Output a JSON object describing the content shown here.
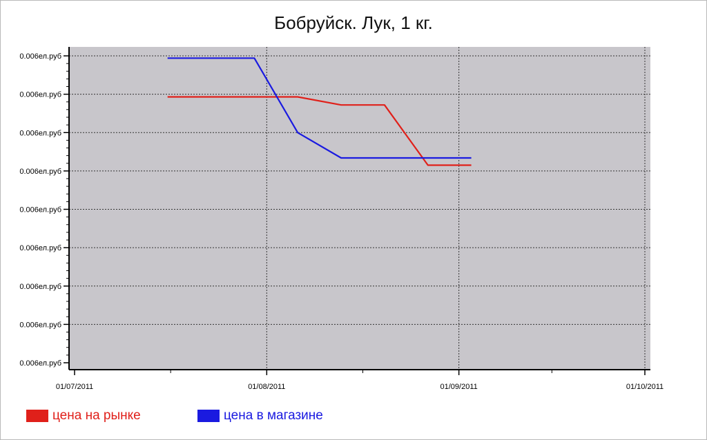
{
  "chart_data": {
    "type": "line",
    "title": "Бобруйск. Лук, 1 кг.",
    "xlabel": "",
    "ylabel": "",
    "x_ticks": [
      "01/07/2011",
      "01/08/2011",
      "01/09/2011",
      "01/10/2011"
    ],
    "x_range": [
      "2011-07-01",
      "2011-10-01"
    ],
    "y_tick_labels": [
      "0.006ел.руб",
      "0.006ел.руб",
      "0.006ел.руб",
      "0.006ел.руб",
      "0.006ел.руб",
      "0.006ел.руб",
      "0.006ел.руб",
      "0.006ел.руб",
      "0.006ел.руб"
    ],
    "y_range": [
      0,
      8
    ],
    "grid": true,
    "legend_position": "bottom-left",
    "series": [
      {
        "name": "цена на рынке",
        "color": "#e0201a",
        "points": [
          {
            "x": "2011-07-16",
            "y": 6.93
          },
          {
            "x": "2011-07-23",
            "y": 6.93
          },
          {
            "x": "2011-08-06",
            "y": 6.93
          },
          {
            "x": "2011-08-13",
            "y": 6.72
          },
          {
            "x": "2011-08-20",
            "y": 6.72
          },
          {
            "x": "2011-08-27",
            "y": 5.15
          },
          {
            "x": "2011-09-03",
            "y": 5.15
          }
        ]
      },
      {
        "name": "цена в магазине",
        "color": "#1a1ae0",
        "points": [
          {
            "x": "2011-07-16",
            "y": 7.94
          },
          {
            "x": "2011-07-30",
            "y": 7.94
          },
          {
            "x": "2011-08-06",
            "y": 6.0
          },
          {
            "x": "2011-08-13",
            "y": 5.34
          },
          {
            "x": "2011-08-20",
            "y": 5.34
          },
          {
            "x": "2011-09-03",
            "y": 5.34
          }
        ]
      }
    ]
  }
}
